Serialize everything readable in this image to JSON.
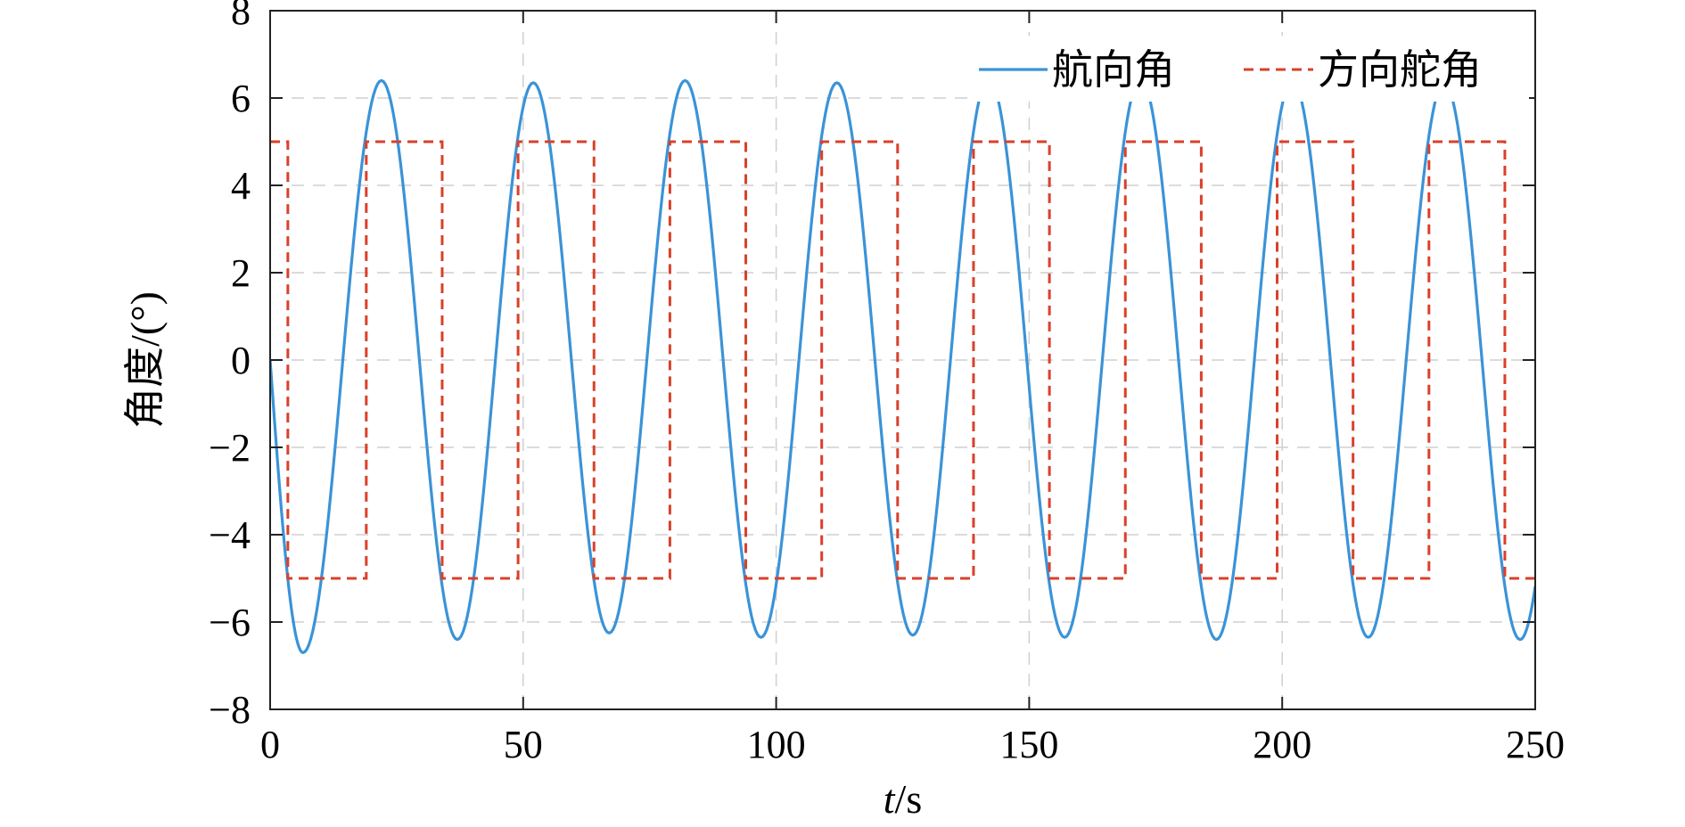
{
  "chart_data": {
    "type": "line",
    "xlabel_italic": "t",
    "xlabel_unit": "/s",
    "ylabel": "角度/(°)",
    "xlim": [
      0,
      250
    ],
    "ylim": [
      -8,
      8
    ],
    "xticks": [
      0,
      50,
      100,
      150,
      200,
      250
    ],
    "xtick_labels": [
      "0",
      "50",
      "100",
      "150",
      "200",
      "250"
    ],
    "yticks": [
      8,
      6,
      4,
      2,
      0,
      -2,
      -4,
      -6,
      -8
    ],
    "ytick_labels": [
      "8",
      "6",
      "4",
      "2",
      "0",
      "−2",
      "−4",
      "−6",
      "−8"
    ],
    "grid": true,
    "legend_position": "top-right",
    "series": [
      {
        "name": "航向角",
        "color": "#3a93d8",
        "style": "solid",
        "x": [
          0,
          6.5,
          22,
          37,
          52,
          67,
          82,
          97,
          112,
          127,
          142,
          157,
          172,
          187,
          202,
          217,
          232,
          247,
          250
        ],
        "y": [
          0,
          -6.7,
          6.4,
          -6.4,
          6.35,
          -6.25,
          6.4,
          -6.35,
          6.35,
          -6.3,
          6.45,
          -6.35,
          6.45,
          -6.4,
          6.4,
          -6.35,
          6.35,
          -6.4,
          -4.5
        ]
      },
      {
        "name": "方向舵角",
        "color": "#d9402b",
        "style": "dashed",
        "x": [
          0,
          3.5,
          3.5,
          19,
          19,
          34,
          34,
          49,
          49,
          64,
          64,
          79,
          79,
          94,
          94,
          109,
          109,
          124,
          124,
          139,
          139,
          154,
          154,
          169,
          169,
          184,
          184,
          199,
          199,
          214,
          214,
          229,
          229,
          244,
          244,
          250
        ],
        "y": [
          5,
          5,
          -5,
          -5,
          5,
          5,
          -5,
          -5,
          5,
          5,
          -5,
          -5,
          5,
          5,
          -5,
          -5,
          5,
          5,
          -5,
          -5,
          5,
          5,
          -5,
          -5,
          5,
          5,
          -5,
          -5,
          5,
          5,
          -5,
          -5,
          5,
          5,
          -5,
          -5
        ]
      }
    ]
  }
}
